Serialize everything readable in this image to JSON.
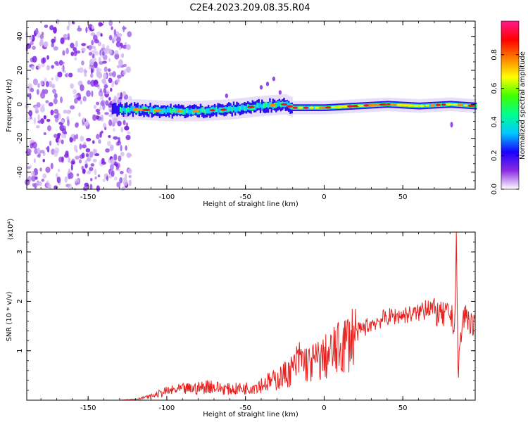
{
  "title": "C2E4.2023.209.08.35.R04",
  "spectrogram": {
    "type": "heatmap",
    "xlabel": "Height of straight line (km)",
    "ylabel": "Frequency (Hz)",
    "xlim": [
      -189,
      96
    ],
    "ylim": [
      -50,
      49
    ],
    "xticks": [
      -150,
      -100,
      -50,
      0,
      50
    ],
    "yticks": [
      -40,
      -20,
      0,
      20,
      40
    ],
    "colorbar": {
      "label": "Normalized spectral amplitude",
      "range": [
        0,
        1
      ],
      "ticks": [
        "0.0",
        "0.2",
        "0.4",
        "0.6",
        "0.8"
      ],
      "colormap": [
        "#ffffff",
        "#8a2be2",
        "#1a00ff",
        "#00c8ff",
        "#00ff90",
        "#40ff00",
        "#ffff00",
        "#ff7f00",
        "#ff0000",
        "#ff1a8c"
      ]
    },
    "noise_region_x": [
      -189,
      -123
    ],
    "signal_track": [
      {
        "x": -135,
        "f": -3
      },
      {
        "x": -120,
        "f": -3
      },
      {
        "x": -100,
        "f": -4
      },
      {
        "x": -80,
        "f": -4
      },
      {
        "x": -60,
        "f": -3
      },
      {
        "x": -40,
        "f": -1
      },
      {
        "x": -25,
        "f": 0
      },
      {
        "x": -20,
        "f": -2
      },
      {
        "x": 0,
        "f": -2
      },
      {
        "x": 20,
        "f": -1
      },
      {
        "x": 40,
        "f": 0
      },
      {
        "x": 60,
        "f": -1
      },
      {
        "x": 80,
        "f": 0
      },
      {
        "x": 96,
        "f": -1
      }
    ]
  },
  "chart_data": {
    "type": "line",
    "title": "",
    "xlabel": "Height of straight line (km)",
    "ylabel": "SNR (10 * v/v)",
    "y_multiplier_label": "(x10⁴)",
    "xlim": [
      -189,
      96
    ],
    "ylim": [
      0,
      3.4
    ],
    "xticks": [
      -150,
      -100,
      -50,
      0,
      50
    ],
    "yticks": [
      1,
      2,
      3
    ],
    "color": "#e8211e",
    "series": [
      {
        "x": [
          -189,
          -130,
          -120,
          -110,
          -100,
          -90,
          -80,
          -72,
          -70,
          -60,
          -50,
          -40,
          -30,
          -20,
          -15,
          -10,
          0,
          10,
          20,
          30,
          40,
          50,
          60,
          66,
          70,
          75,
          80,
          83,
          84,
          85,
          88,
          90,
          96
        ],
        "values": [
          0.0,
          0.0,
          0.02,
          0.08,
          0.18,
          0.22,
          0.24,
          0.3,
          0.26,
          0.22,
          0.24,
          0.32,
          0.42,
          0.62,
          0.85,
          0.72,
          0.85,
          1.05,
          1.35,
          1.55,
          1.68,
          1.72,
          1.76,
          1.95,
          1.78,
          1.7,
          1.75,
          1.5,
          3.4,
          0.6,
          1.6,
          1.75,
          1.4
        ]
      }
    ]
  }
}
